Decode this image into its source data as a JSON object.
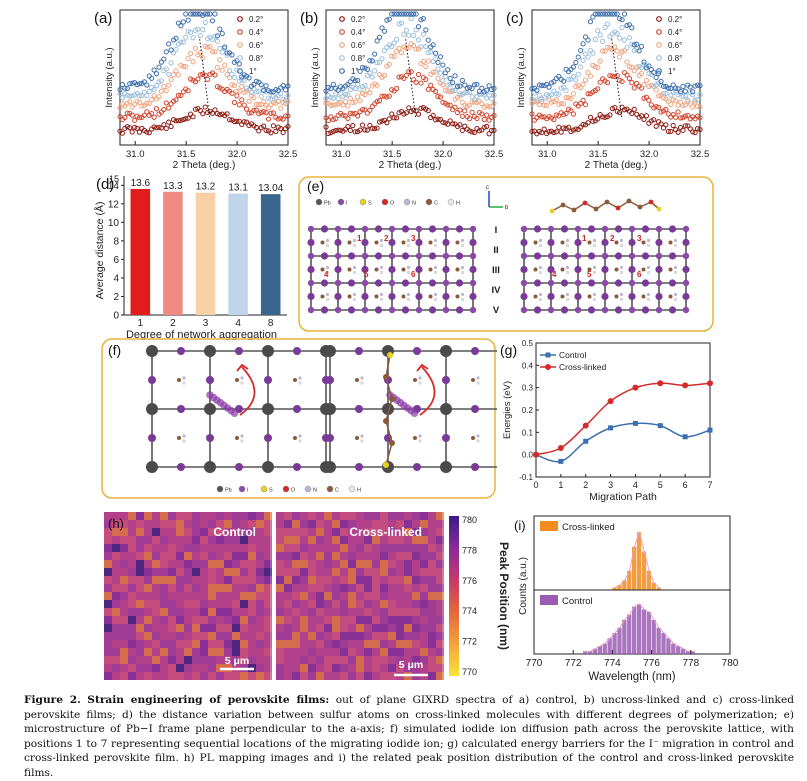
{
  "panels": {
    "a": {
      "label": "(a)"
    },
    "b": {
      "label": "(b)"
    },
    "c": {
      "label": "(c)"
    },
    "d": {
      "label": "(d)"
    },
    "e": {
      "label": "(e)"
    },
    "f": {
      "label": "(f)"
    },
    "g": {
      "label": "(g)"
    },
    "h": {
      "label": "(h)"
    },
    "i": {
      "label": "(i)"
    }
  },
  "xrd": {
    "xlabel": "2 Theta (deg.)",
    "ylabel": "Intensity (a.u.)",
    "xticks": [
      "31.0",
      "31.5",
      "32.0",
      "32.5"
    ],
    "legend": [
      "0.2°",
      "0.4°",
      "0.6°",
      "0.8°",
      "1°"
    ],
    "colors": [
      "#8c1a12",
      "#d2452d",
      "#f0a47e",
      "#9cbedc",
      "#3f6fae"
    ]
  },
  "chart_data": [
    {
      "type": "bar",
      "panel": "d",
      "categories": [
        "1",
        "2",
        "3",
        "4",
        "8"
      ],
      "values": [
        13.6,
        13.3,
        13.2,
        13.1,
        13.04
      ],
      "data_labels": [
        "13.6",
        "13.3",
        "13.2",
        "13.1",
        "13.04"
      ],
      "colors": [
        "#e21c1c",
        "#f08a82",
        "#f7d0a6",
        "#c0d5ea",
        "#3b6591"
      ],
      "xlabel": "Degree of network aggregation",
      "ylabel": "Average distance (Å)",
      "ylim": [
        0,
        15
      ],
      "yticks": [
        "0",
        "2",
        "4",
        "6",
        "8",
        "10",
        "12",
        "14"
      ],
      "ytick_top": "15"
    },
    {
      "type": "line",
      "panel": "g",
      "x": [
        0,
        1,
        2,
        3,
        4,
        5,
        6,
        7
      ],
      "series": [
        {
          "name": "Control",
          "values": [
            0.0,
            -0.03,
            0.06,
            0.12,
            0.14,
            0.13,
            0.08,
            0.11
          ],
          "color": "#3b6fb0"
        },
        {
          "name": "Cross-linked",
          "values": [
            0.0,
            0.03,
            0.13,
            0.24,
            0.3,
            0.32,
            0.31,
            0.32
          ],
          "color": "#d42a2a"
        }
      ],
      "xlabel": "Migration Path",
      "ylabel": "Energies (eV)",
      "xlim": [
        0,
        7
      ],
      "ylim": [
        -0.1,
        0.5
      ],
      "yticks": [
        "-0.1",
        "0.0",
        "0.1",
        "0.2",
        "0.3",
        "0.4",
        "0.5"
      ],
      "xticks": [
        "0",
        "1",
        "2",
        "3",
        "4",
        "5",
        "6",
        "7"
      ]
    },
    {
      "type": "histogram",
      "panel": "i",
      "series": [
        {
          "name": "Cross-linked",
          "color": "#f28c1e",
          "bins_start": 774.0,
          "bin_width": 0.25,
          "counts": [
            1,
            2,
            4,
            8,
            18,
            24,
            16,
            8,
            3,
            1
          ]
        },
        {
          "name": "Control",
          "color": "#9a5db3",
          "bins_start": 772.5,
          "bin_width": 0.25,
          "counts": [
            1,
            1,
            2,
            3,
            4,
            6,
            8,
            10,
            13,
            15,
            18,
            19,
            17,
            16,
            13,
            10,
            8,
            6,
            4,
            3,
            2,
            1,
            1
          ]
        }
      ],
      "xlabel": "Wavelength (nm)",
      "ylabel": "Counts (a.u.)",
      "xticks": [
        "770",
        "772",
        "774",
        "776",
        "778",
        "780"
      ],
      "xlim": [
        770,
        780
      ]
    }
  ],
  "panel_e": {
    "legend": [
      "Pb",
      "I",
      "S",
      "O",
      "N",
      "C",
      "H"
    ],
    "layer_labels": [
      "I",
      "II",
      "III",
      "IV",
      "V"
    ],
    "site_labels_top": [
      "1",
      "2",
      "3"
    ],
    "site_labels_bottom": [
      "4",
      "5",
      "6"
    ],
    "axis_c": "c",
    "axis_b": "b"
  },
  "panel_f": {
    "legend": [
      "Pb",
      "I",
      "S",
      "O",
      "N",
      "C",
      "H"
    ]
  },
  "panel_h": {
    "left_title": "Control",
    "right_title": "Cross-linked",
    "scalebar": "5 μm",
    "colorbar_label": "Peak Position (nm)",
    "colorbar_ticks": [
      "780",
      "778",
      "776",
      "774",
      "772",
      "770"
    ]
  },
  "caption": {
    "figure": "Figure 2.",
    "title": "Strain engineering of perovskite films:",
    "text": "out of plane GIXRD spectra of a) control, b) uncross-linked and c) cross-linked perovskite films; d) the distance variation between sulfur atoms on cross-linked molecules with different degrees of polymerization; e) microstructure of Pb−I frame plane perpendicular to the a-axis; f) simulated iodide ion diffusion path across the perovskite lattice, with positions 1 to 7 representing sequential locations of the migrating iodide ion; g) calculated energy barriers for the I⁻ migration in control and cross-linked perovskite film. h) PL mapping images and i) the related peak position distribution of the control and cross-linked perovskite films."
  }
}
